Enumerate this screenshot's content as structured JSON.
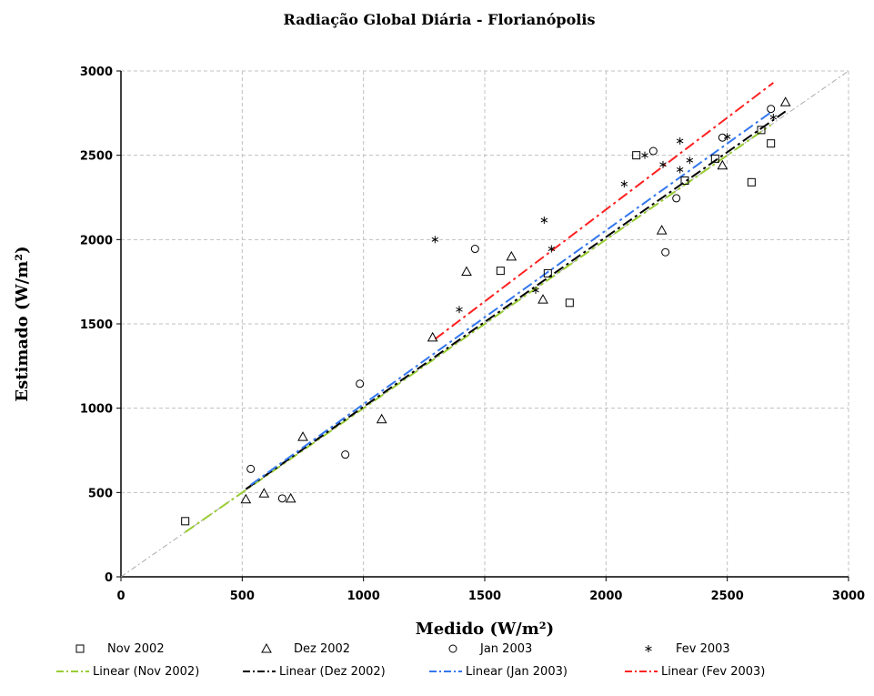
{
  "chart_data": {
    "type": "scatter",
    "title": "Radiação Global Diária - Florianópolis",
    "xlabel": "Medido (W/m²)",
    "ylabel": "Estimado (W/m²)",
    "xlim": [
      0,
      3000
    ],
    "ylim": [
      0,
      3000
    ],
    "x_ticks": [
      "0",
      "500",
      "1000",
      "1500",
      "2000",
      "2500",
      "3000"
    ],
    "y_ticks": [
      "0",
      "500",
      "1000",
      "1500",
      "2000",
      "2500",
      "3000"
    ],
    "grid": true,
    "identity_line": true,
    "legend_position": "bottom",
    "series": [
      {
        "name": "Nov 2002",
        "marker": "square",
        "color": "#000000",
        "points": [
          [
            265,
            330
          ],
          [
            1565,
            1815
          ],
          [
            1760,
            1800
          ],
          [
            1850,
            1625
          ],
          [
            2125,
            2500
          ],
          [
            2325,
            2350
          ],
          [
            2450,
            2480
          ],
          [
            2600,
            2340
          ],
          [
            2640,
            2650
          ],
          [
            2680,
            2570
          ]
        ]
      },
      {
        "name": "Dez 2002",
        "marker": "triangle",
        "color": "#000000",
        "points": [
          [
            515,
            460
          ],
          [
            590,
            495
          ],
          [
            700,
            465
          ],
          [
            750,
            830
          ],
          [
            1075,
            935
          ],
          [
            1285,
            1420
          ],
          [
            1425,
            1810
          ],
          [
            1610,
            1900
          ],
          [
            1740,
            1645
          ],
          [
            2230,
            2055
          ],
          [
            2480,
            2440
          ],
          [
            2740,
            2815
          ]
        ]
      },
      {
        "name": "Jan 2003",
        "marker": "circle",
        "color": "#000000",
        "points": [
          [
            535,
            640
          ],
          [
            665,
            465
          ],
          [
            925,
            725
          ],
          [
            985,
            1145
          ],
          [
            1460,
            1945
          ],
          [
            2195,
            2525
          ],
          [
            2245,
            1925
          ],
          [
            2290,
            2245
          ],
          [
            2480,
            2605
          ],
          [
            2680,
            2775
          ]
        ]
      },
      {
        "name": "Fev 2003",
        "marker": "star",
        "color": "#000000",
        "points": [
          [
            1295,
            2000
          ],
          [
            1395,
            1585
          ],
          [
            1710,
            1700
          ],
          [
            1745,
            2115
          ],
          [
            1775,
            1945
          ],
          [
            2075,
            2330
          ],
          [
            2160,
            2500
          ],
          [
            2235,
            2445
          ],
          [
            2305,
            2585
          ],
          [
            2305,
            2415
          ],
          [
            2345,
            2470
          ],
          [
            2500,
            2610
          ],
          [
            2690,
            2725
          ]
        ]
      }
    ],
    "trendlines": [
      {
        "name": "Linear (Nov 2002)",
        "color": "#99cc33",
        "from": [
          265,
          265
        ],
        "to": [
          2680,
          2680
        ]
      },
      {
        "name": "Linear (Dez 2002)",
        "color": "#000000",
        "from": [
          515,
          520
        ],
        "to": [
          2740,
          2760
        ]
      },
      {
        "name": "Linear (Jan 2003)",
        "color": "#3377ee",
        "from": [
          535,
          545
        ],
        "to": [
          2680,
          2755
        ]
      },
      {
        "name": "Linear (Fev 2003)",
        "color": "#ff2020",
        "from": [
          1295,
          1410
        ],
        "to": [
          2690,
          2930
        ]
      }
    ]
  }
}
